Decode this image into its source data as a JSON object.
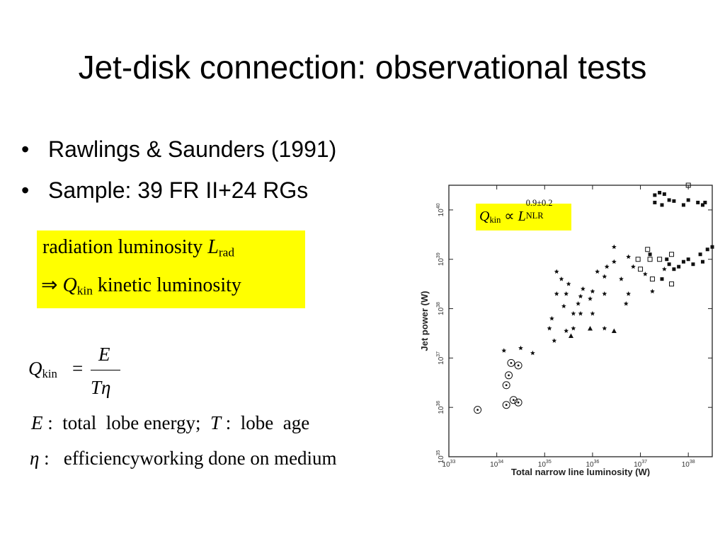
{
  "slide": {
    "title": "Jet-disk connection: observational tests",
    "bullets": [
      {
        "marker": "•",
        "text": "Rawlings & Saunders (1991)"
      },
      {
        "marker": "•",
        "text": "Sample: 39 FR II+24 RGs"
      }
    ],
    "box": {
      "line1_text": "radiation luminosity ",
      "line1_sym": "L",
      "line1_sub": "rad",
      "line2_arrow": "⇒",
      "line2_sym": "Q",
      "line2_sub": "kin",
      "line2_text": " kinetic luminosity"
    },
    "formula": {
      "lhs": "Q",
      "lhs_sub": "kin",
      "eq": "=",
      "numerator": "E",
      "denominator": "Tη"
    },
    "def1": {
      "sym1": "E",
      "text1": " :  total  lobe energy;  ",
      "sym2": "T",
      "text2": " :  lobe  age"
    },
    "def2": {
      "sym": "η",
      "text": " :   efficiencyworking done on medium"
    }
  },
  "chart_data": {
    "type": "scatter",
    "xlabel": "Total narrow line luminosity  (W)",
    "ylabel": "Jet power  (W)",
    "xscale": "log",
    "yscale": "log",
    "xlim": [
      33,
      38.5
    ],
    "ylim": [
      35,
      40.5
    ],
    "x_ticks": [
      "10^33",
      "10^34",
      "10^35",
      "10^36",
      "10^37",
      "10^38"
    ],
    "y_ticks": [
      "10^35",
      "10^36",
      "10^37",
      "10^38",
      "10^39",
      "10^40"
    ],
    "annotation": {
      "sym": "Q",
      "sub": "kin",
      "rel": " ∝ ",
      "sym2": "L",
      "sup": "0.9±0.2",
      "sub2": "NLR"
    },
    "series": [
      {
        "marker": "filled-square",
        "points": [
          [
            37.3,
            40.3
          ],
          [
            37.4,
            40.35
          ],
          [
            37.5,
            40.32
          ],
          [
            37.3,
            40.15
          ],
          [
            37.45,
            40.1
          ],
          [
            37.6,
            40.2
          ],
          [
            37.7,
            40.18
          ],
          [
            37.9,
            40.1
          ],
          [
            38.0,
            40.2
          ],
          [
            38.2,
            40.15
          ],
          [
            38.3,
            40.1
          ],
          [
            38.35,
            40.15
          ],
          [
            37.55,
            39.0
          ],
          [
            37.6,
            38.9
          ],
          [
            37.7,
            38.8
          ],
          [
            37.8,
            38.85
          ],
          [
            37.9,
            38.95
          ],
          [
            38.0,
            39.0
          ],
          [
            38.1,
            38.9
          ],
          [
            38.25,
            39.1
          ],
          [
            38.3,
            38.95
          ],
          [
            38.4,
            39.2
          ],
          [
            38.5,
            39.25
          ],
          [
            37.2,
            39.1
          ],
          [
            37.45,
            38.6
          ]
        ]
      },
      {
        "marker": "open-square",
        "points": [
          [
            38.0,
            40.5
          ],
          [
            37.15,
            39.2
          ],
          [
            37.65,
            39.1
          ],
          [
            37.2,
            39.0
          ],
          [
            37.4,
            39.0
          ],
          [
            36.95,
            39.0
          ],
          [
            37.0,
            38.8
          ],
          [
            37.25,
            38.6
          ],
          [
            37.65,
            38.5
          ]
        ]
      },
      {
        "marker": "star",
        "points": [
          [
            34.15,
            37.15
          ],
          [
            34.5,
            37.2
          ],
          [
            34.75,
            37.1
          ],
          [
            35.25,
            38.3
          ],
          [
            35.35,
            38.6
          ],
          [
            35.25,
            38.75
          ],
          [
            35.5,
            38.5
          ],
          [
            35.45,
            38.3
          ],
          [
            35.4,
            38.05
          ],
          [
            35.6,
            37.9
          ],
          [
            35.75,
            38.25
          ],
          [
            35.8,
            38.4
          ],
          [
            35.15,
            37.8
          ],
          [
            35.1,
            37.6
          ],
          [
            35.2,
            37.35
          ],
          [
            35.45,
            37.55
          ],
          [
            35.6,
            37.6
          ],
          [
            35.75,
            37.9
          ],
          [
            35.7,
            38.1
          ],
          [
            35.95,
            38.2
          ],
          [
            36.0,
            38.35
          ],
          [
            36.1,
            38.75
          ],
          [
            36.25,
            38.65
          ],
          [
            36.3,
            38.85
          ],
          [
            36.45,
            38.95
          ],
          [
            36.25,
            38.3
          ],
          [
            36.0,
            37.9
          ],
          [
            36.25,
            37.6
          ],
          [
            36.6,
            38.6
          ],
          [
            36.75,
            38.3
          ],
          [
            36.7,
            38.1
          ],
          [
            36.85,
            38.85
          ],
          [
            36.75,
            39.05
          ],
          [
            36.45,
            39.25
          ],
          [
            37.1,
            38.7
          ],
          [
            37.25,
            38.35
          ],
          [
            37.5,
            38.8
          ]
        ]
      },
      {
        "marker": "filled-triangle",
        "points": [
          [
            35.55,
            37.45
          ],
          [
            35.95,
            37.6
          ],
          [
            36.45,
            37.55
          ]
        ]
      },
      {
        "marker": "circled-dot",
        "points": [
          [
            33.6,
            35.95
          ],
          [
            34.2,
            36.05
          ],
          [
            34.2,
            36.45
          ],
          [
            34.25,
            36.65
          ],
          [
            34.3,
            36.9
          ],
          [
            34.45,
            36.85
          ],
          [
            34.35,
            36.15
          ],
          [
            34.45,
            36.1
          ]
        ]
      }
    ]
  }
}
